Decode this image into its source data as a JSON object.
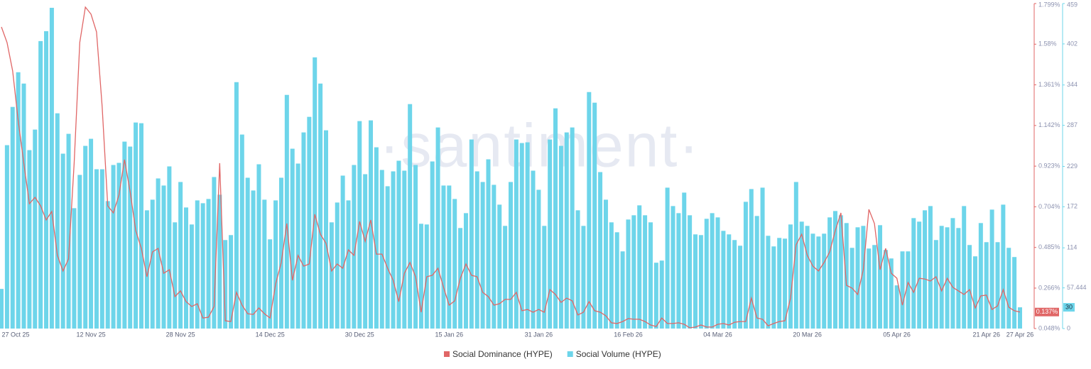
{
  "chart_data": {
    "type": "bar",
    "watermark": "·santiment·",
    "categories": [
      "27 Oct 25",
      null,
      null,
      null,
      null,
      null,
      null,
      null,
      null,
      null,
      null,
      null,
      null,
      null,
      null,
      null,
      "12 Nov 25",
      null,
      null,
      null,
      null,
      null,
      null,
      null,
      null,
      null,
      null,
      null,
      null,
      null,
      null,
      null,
      "28 Nov 25",
      null,
      null,
      null,
      null,
      null,
      null,
      null,
      null,
      null,
      null,
      null,
      null,
      null,
      null,
      null,
      "14 Dec 25",
      null,
      null,
      null,
      null,
      null,
      null,
      null,
      null,
      null,
      null,
      null,
      null,
      null,
      null,
      null,
      "30 Dec 25",
      null,
      null,
      null,
      null,
      null,
      null,
      null,
      null,
      null,
      null,
      null,
      null,
      null,
      null,
      null,
      "15 Jan 26",
      null,
      null,
      null,
      null,
      null,
      null,
      null,
      null,
      null,
      null,
      null,
      null,
      null,
      null,
      null,
      "31 Jan 26",
      null,
      null,
      null,
      null,
      null,
      null,
      null,
      null,
      null,
      null,
      null,
      null,
      null,
      null,
      null,
      "16 Feb 26",
      null,
      null,
      null,
      null,
      null,
      null,
      null,
      null,
      null,
      null,
      null,
      null,
      null,
      null,
      null,
      "04 Mar 26",
      null,
      null,
      null,
      null,
      null,
      null,
      null,
      null,
      null,
      null,
      null,
      null,
      null,
      null,
      null,
      "20 Mar 26",
      null,
      null,
      null,
      null,
      null,
      null,
      null,
      null,
      null,
      null,
      null,
      null,
      null,
      null,
      null,
      "05 Apr 26",
      null,
      null,
      null,
      null,
      null,
      null,
      null,
      null,
      null,
      null,
      null,
      null,
      null,
      null,
      null,
      "21 Apr 26",
      null,
      null,
      null,
      null,
      null,
      "27 Apr 26"
    ],
    "ylim": [
      0.048,
      1.799
    ],
    "yticks": [
      {
        "value": 0.048,
        "label": "0.048%"
      },
      {
        "value": 0.266,
        "label": "0.266%"
      },
      {
        "value": 0.485,
        "label": "0.485%"
      },
      {
        "value": 0.704,
        "label": "0.704%"
      },
      {
        "value": 0.923,
        "label": "0.923%"
      },
      {
        "value": 1.142,
        "label": "1.142%"
      },
      {
        "value": 1.361,
        "label": "1.361%"
      },
      {
        "value": 1.58,
        "label": "1.58%"
      },
      {
        "value": 1.799,
        "label": "1.799%"
      }
    ],
    "y2lim": [
      0,
      459
    ],
    "y2ticks": [
      0,
      57.444,
      114,
      172,
      229,
      287,
      344,
      402,
      459
    ],
    "series": [
      {
        "name": "Social Dominance (HYPE)",
        "type": "line",
        "color": "#e06666",
        "last_value_label": "0.137%",
        "values": [
          1.673,
          1.589,
          1.436,
          1.168,
          0.939,
          0.721,
          0.755,
          0.709,
          0.633,
          0.679,
          0.442,
          0.358,
          0.423,
          0.939,
          1.589,
          1.78,
          1.742,
          1.646,
          1.245,
          0.709,
          0.671,
          0.767,
          0.958,
          0.786,
          0.576,
          0.48,
          0.327,
          0.461,
          0.48,
          0.346,
          0.365,
          0.22,
          0.251,
          0.193,
          0.167,
          0.182,
          0.105,
          0.109,
          0.167,
          0.939,
          0.09,
          0.086,
          0.243,
          0.174,
          0.128,
          0.124,
          0.159,
          0.128,
          0.105,
          0.289,
          0.404,
          0.614,
          0.308,
          0.442,
          0.384,
          0.396,
          0.664,
          0.556,
          0.507,
          0.358,
          0.396,
          0.373,
          0.472,
          0.442,
          0.625,
          0.518,
          0.633,
          0.449,
          0.449,
          0.373,
          0.308,
          0.193,
          0.346,
          0.404,
          0.327,
          0.136,
          0.327,
          0.335,
          0.373,
          0.27,
          0.174,
          0.197,
          0.319,
          0.396,
          0.335,
          0.327,
          0.243,
          0.22,
          0.174,
          0.182,
          0.205,
          0.205,
          0.243,
          0.144,
          0.151,
          0.136,
          0.151,
          0.136,
          0.258,
          0.232,
          0.189,
          0.212,
          0.197,
          0.121,
          0.136,
          0.193,
          0.144,
          0.136,
          0.117,
          0.079,
          0.075,
          0.086,
          0.102,
          0.098,
          0.098,
          0.086,
          0.067,
          0.059,
          0.105,
          0.075,
          0.075,
          0.079,
          0.071,
          0.052,
          0.056,
          0.067,
          0.056,
          0.056,
          0.071,
          0.075,
          0.067,
          0.082,
          0.086,
          0.086,
          0.212,
          0.105,
          0.098,
          0.063,
          0.075,
          0.086,
          0.09,
          0.212,
          0.499,
          0.556,
          0.442,
          0.384,
          0.358,
          0.404,
          0.461,
          0.576,
          0.671,
          0.281,
          0.266,
          0.232,
          0.365,
          0.69,
          0.614,
          0.365,
          0.48,
          0.346,
          0.319,
          0.174,
          0.296,
          0.243,
          0.319,
          0.315,
          0.304,
          0.327,
          0.251,
          0.319,
          0.27,
          0.251,
          0.232,
          0.258,
          0.159,
          0.224,
          0.228,
          0.151,
          0.17,
          0.258,
          0.163,
          0.144,
          0.137
        ]
      },
      {
        "name": "Social Volume (HYPE)",
        "type": "bar",
        "axis": "y2",
        "color": "#6dd5ea",
        "last_value_label": "30",
        "values": [
          56,
          259,
          313,
          362,
          346,
          252,
          281,
          406,
          420,
          453,
          304,
          247,
          275,
          170,
          217,
          258,
          268,
          225,
          225,
          180,
          231,
          234,
          264,
          257,
          291,
          290,
          167,
          182,
          212,
          202,
          229,
          150,
          207,
          171,
          147,
          181,
          177,
          183,
          214,
          189,
          125,
          132,
          348,
          274,
          213,
          195,
          232,
          182,
          126,
          181,
          213,
          330,
          254,
          233,
          277,
          299,
          383,
          346,
          280,
          150,
          178,
          216,
          181,
          231,
          293,
          218,
          294,
          256,
          224,
          201,
          222,
          237,
          223,
          317,
          231,
          148,
          147,
          236,
          284,
          202,
          202,
          183,
          142,
          163,
          267,
          222,
          207,
          239,
          203,
          175,
          145,
          207,
          267,
          262,
          263,
          223,
          196,
          145,
          267,
          311,
          258,
          277,
          284,
          167,
          145,
          334,
          319,
          221,
          182,
          150,
          136,
          109,
          154,
          160,
          174,
          160,
          150,
          93,
          96,
          199,
          173,
          163,
          192,
          160,
          133,
          132,
          155,
          163,
          157,
          138,
          133,
          125,
          117,
          179,
          197,
          159,
          199,
          131,
          116,
          128,
          127,
          147,
          207,
          151,
          145,
          134,
          130,
          134,
          157,
          166,
          160,
          149,
          114,
          143,
          145,
          113,
          118,
          146,
          111,
          99,
          61,
          109,
          109,
          156,
          151,
          167,
          173,
          125,
          145,
          143,
          156,
          142,
          173,
          118,
          102,
          149,
          122,
          168,
          122,
          175,
          114,
          101,
          30
        ]
      }
    ]
  }
}
